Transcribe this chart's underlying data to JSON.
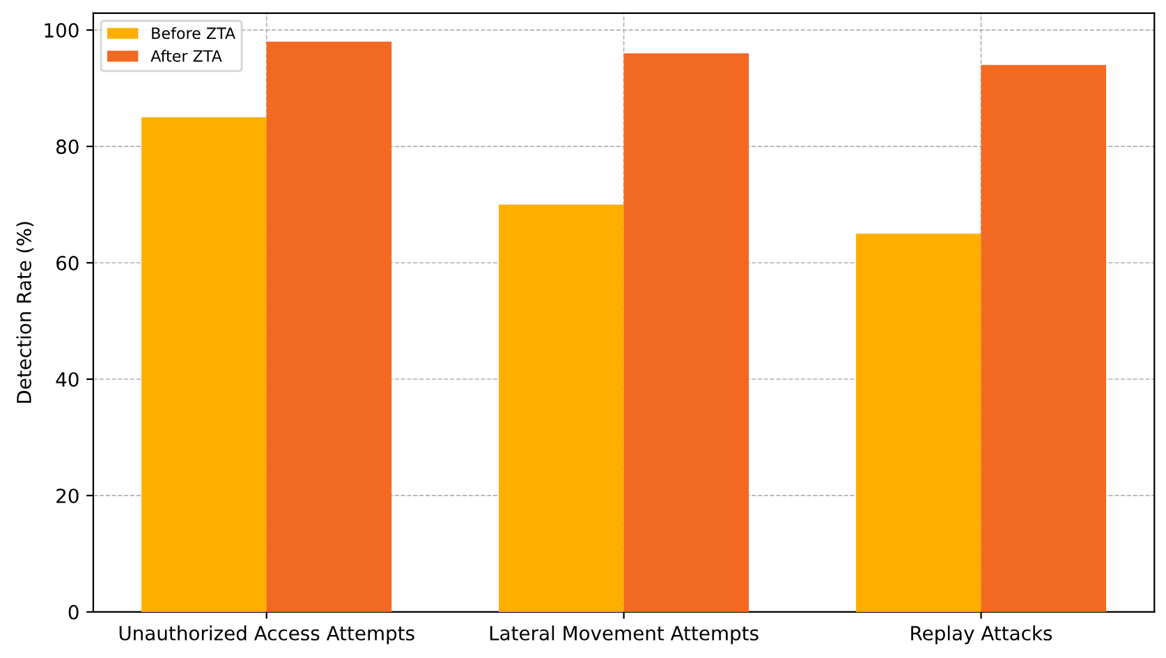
{
  "chart_data": {
    "type": "bar",
    "ylabel": "Detection Rate (%)",
    "categories": [
      "Unauthorized Access Attempts",
      "Lateral Movement Attempts",
      "Replay Attacks"
    ],
    "series": [
      {
        "name": "Before ZTA",
        "color": "#ffae00",
        "values": [
          85,
          70,
          65
        ]
      },
      {
        "name": "After ZTA",
        "color": "#f26922",
        "values": [
          98,
          96,
          94
        ]
      }
    ],
    "ylim": [
      0,
      102.9
    ],
    "yticks": [
      0,
      20,
      40,
      60,
      80,
      100
    ],
    "grid": true,
    "legend": "top left"
  }
}
